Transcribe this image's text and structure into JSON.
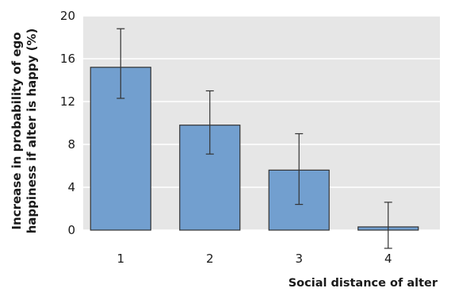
{
  "chart_data": {
    "type": "bar",
    "title": "",
    "xlabel": "Social distance of alter",
    "ylabel_lines": [
      "Increase in probability of ego",
      "happiness if alter is happy (%)"
    ],
    "categories": [
      "1",
      "2",
      "3",
      "4"
    ],
    "values": [
      15.2,
      9.8,
      5.6,
      0.3
    ],
    "error_low": [
      12.3,
      7.1,
      2.4,
      -1.7
    ],
    "error_high": [
      18.8,
      13.0,
      9.0,
      2.6
    ],
    "yticks": [
      "0",
      "4",
      "8",
      "12",
      "16",
      "20"
    ],
    "ylim": [
      0,
      20
    ],
    "grid": true,
    "colors": {
      "plot_background": "#e6e6e6",
      "gridline": "#ffffff",
      "bar_fill": "#729fcf",
      "bar_stroke": "#333333",
      "error_bar": "#333333"
    }
  }
}
